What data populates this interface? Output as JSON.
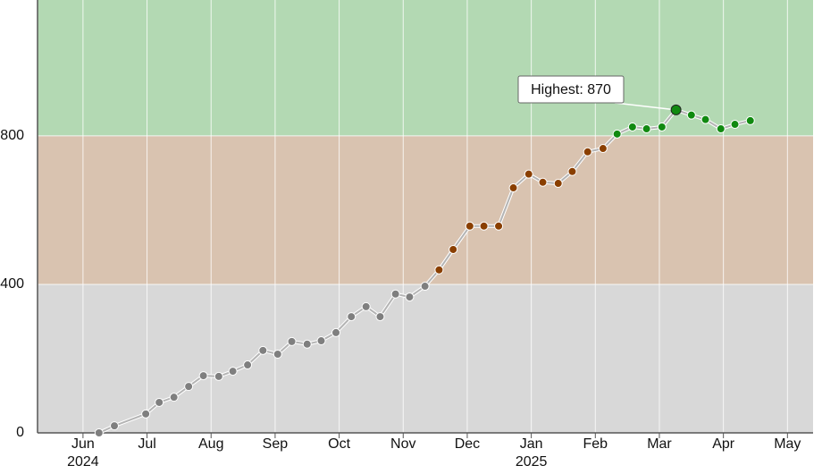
{
  "chart_data": {
    "type": "line",
    "x": [
      0.25,
      0.49,
      0.98,
      1.19,
      1.42,
      1.65,
      1.88,
      2.12,
      2.34,
      2.57,
      2.81,
      3.04,
      3.26,
      3.5,
      3.72,
      3.95,
      4.19,
      4.42,
      4.64,
      4.88,
      5.1,
      5.34,
      5.56,
      5.78,
      6.04,
      6.26,
      6.49,
      6.72,
      6.96,
      7.18,
      7.42,
      7.64,
      7.88,
      8.12,
      8.34,
      8.58,
      8.8,
      9.04,
      9.26,
      9.5,
      9.72,
      9.96,
      10.18,
      10.42
    ],
    "values": [
      0,
      19,
      51,
      82,
      96,
      125,
      154,
      152,
      166,
      183,
      222,
      212,
      246,
      239,
      248,
      270,
      313,
      340,
      313,
      374,
      366,
      395,
      439,
      494,
      557,
      557,
      557,
      660,
      697,
      675,
      672,
      704,
      757,
      766,
      805,
      824,
      819,
      824,
      870,
      856,
      844,
      819,
      831,
      841
    ],
    "line_color": "#b4b4b4",
    "bands": [
      {
        "from": 0,
        "to": 400,
        "color": "#d8d8d8",
        "point_color": "#7f7f7f"
      },
      {
        "from": 400,
        "to": 800,
        "color": "#d9c3b0",
        "point_color": "#8a3f00"
      },
      {
        "from": 800,
        "to": 1166,
        "color": "#b3d9b3",
        "point_color": "#108a10"
      }
    ],
    "xlim": [
      -0.71,
      11.4
    ],
    "xticks": [
      {
        "value": 0,
        "label": "Jun"
      },
      {
        "value": 1,
        "label": "Jul"
      },
      {
        "value": 2,
        "label": "Aug"
      },
      {
        "value": 3,
        "label": "Sep"
      },
      {
        "value": 4,
        "label": "Oct"
      },
      {
        "value": 5,
        "label": "Nov"
      },
      {
        "value": 6,
        "label": "Dec"
      },
      {
        "value": 7,
        "label": "Jan"
      },
      {
        "value": 8,
        "label": "Feb"
      },
      {
        "value": 9,
        "label": "Mar"
      },
      {
        "value": 10,
        "label": "Apr"
      },
      {
        "value": 11,
        "label": "May"
      }
    ],
    "year_labels": [
      {
        "value": 0,
        "label": "2024"
      },
      {
        "value": 7,
        "label": "2025"
      }
    ],
    "ylim": [
      0,
      1166
    ],
    "yticks": [
      0,
      400,
      800
    ],
    "grid": true,
    "annotation": {
      "text": "Highest: 870",
      "index": 38
    }
  }
}
